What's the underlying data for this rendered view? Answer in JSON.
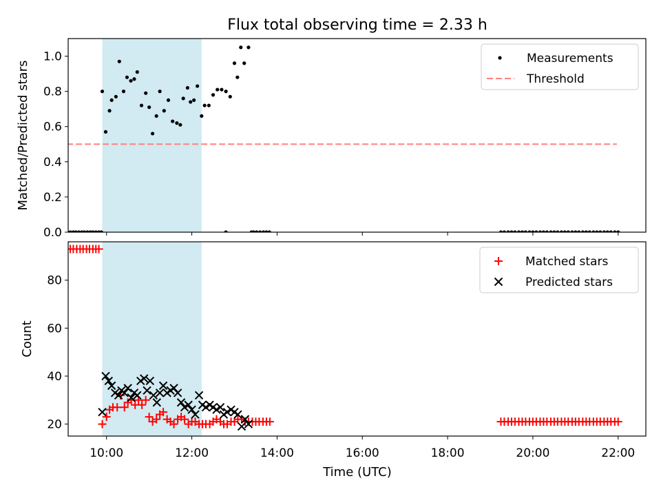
{
  "chart_data": {
    "title": "Flux total observing time = 2.33 h",
    "xlabel": "Time (UTC)",
    "xlim": [
      9.1,
      22.65
    ],
    "x_tick_labels": [
      "10:00",
      "12:00",
      "14:00",
      "16:00",
      "18:00",
      "20:00",
      "22:00"
    ],
    "x_ticks": [
      10,
      12,
      14,
      16,
      18,
      20,
      22
    ],
    "shaded_region": {
      "x": [
        9.9,
        12.23
      ],
      "color": "#add8e6"
    },
    "colors": {
      "measurements": "#000000",
      "threshold": "#ff8080",
      "matched": "#ff0000",
      "predicted": "#000000"
    },
    "panels": [
      {
        "type": "scatter",
        "ylabel": "Matched/Predicted stars",
        "ylim": [
          0,
          1.1
        ],
        "y_tick_labels": [
          "0.0",
          "0.2",
          "0.4",
          "0.6",
          "0.8",
          "1.0"
        ],
        "y_ticks": [
          0,
          0.2,
          0.4,
          0.6,
          0.8,
          1.0
        ],
        "legend": {
          "location": "upper right",
          "entries": [
            "Measurements",
            "Threshold"
          ]
        },
        "threshold": {
          "name": "Threshold",
          "value": 0.5,
          "x": [
            9.07,
            21.97
          ]
        },
        "series": [
          {
            "name": "Measurements",
            "x": [
              9.08,
              9.15,
              9.22,
              9.28,
              9.35,
              9.42,
              9.48,
              9.55,
              9.62,
              9.68,
              9.75,
              9.82,
              9.88,
              9.9,
              9.98,
              10.07,
              10.12,
              10.22,
              10.3,
              10.4,
              10.48,
              10.57,
              10.65,
              10.72,
              10.82,
              10.92,
              11.0,
              11.08,
              11.17,
              11.25,
              11.35,
              11.45,
              11.55,
              11.65,
              11.73,
              11.8,
              11.9,
              11.97,
              12.05,
              12.13,
              12.23,
              12.3,
              12.4,
              12.5,
              12.6,
              12.7,
              12.8,
              12.9,
              13.0,
              13.07,
              13.15,
              13.23,
              13.33,
              12.8,
              13.4,
              13.45,
              13.52,
              13.6,
              13.68,
              13.75,
              13.82,
              19.25,
              19.33,
              19.42,
              19.5,
              19.58,
              19.67,
              19.75,
              19.83,
              19.92,
              20.0,
              20.08,
              20.17,
              20.25,
              20.33,
              20.42,
              20.5,
              20.58,
              20.67,
              20.75,
              20.83,
              20.92,
              21.0,
              21.08,
              21.17,
              21.25,
              21.33,
              21.42,
              21.5,
              21.58,
              21.67,
              21.75,
              21.83,
              21.92,
              22.0
            ],
            "y": [
              0,
              0,
              0,
              0,
              0,
              0,
              0,
              0,
              0,
              0,
              0,
              0,
              0,
              0.8,
              0.57,
              0.69,
              0.75,
              0.77,
              0.97,
              0.8,
              0.88,
              0.86,
              0.87,
              0.91,
              0.72,
              0.79,
              0.71,
              0.56,
              0.66,
              0.8,
              0.69,
              0.75,
              0.63,
              0.62,
              0.61,
              0.76,
              0.82,
              0.74,
              0.75,
              0.83,
              0.66,
              0.72,
              0.72,
              0.78,
              0.81,
              0.81,
              0.8,
              0.77,
              0.96,
              0.88,
              1.05,
              0.96,
              1.05,
              0,
              0,
              0,
              0,
              0,
              0,
              0,
              0,
              0,
              0,
              0,
              0,
              0,
              0,
              0,
              0,
              0,
              0,
              0,
              0,
              0,
              0,
              0,
              0,
              0,
              0,
              0,
              0,
              0,
              0,
              0,
              0,
              0,
              0,
              0,
              0,
              0,
              0,
              0,
              0,
              0,
              0
            ]
          }
        ]
      },
      {
        "type": "scatter",
        "ylabel": "Count",
        "ylim": [
          15,
          96
        ],
        "y_tick_labels": [
          "20",
          "40",
          "60",
          "80"
        ],
        "y_ticks": [
          20,
          40,
          60,
          80
        ],
        "legend": {
          "location": "upper right",
          "entries": [
            "Matched stars",
            "Predicted stars"
          ]
        },
        "series": [
          {
            "name": "Matched stars",
            "marker": "+",
            "x": [
              9.0,
              9.08,
              9.15,
              9.22,
              9.3,
              9.38,
              9.45,
              9.53,
              9.6,
              9.68,
              9.75,
              9.82,
              9.9,
              10.0,
              10.07,
              10.15,
              10.25,
              10.33,
              10.42,
              10.5,
              10.58,
              10.67,
              10.75,
              10.83,
              10.92,
              11.0,
              11.08,
              11.17,
              11.25,
              11.33,
              11.42,
              11.5,
              11.58,
              11.67,
              11.75,
              11.83,
              11.92,
              12.0,
              12.08,
              12.17,
              12.25,
              12.33,
              12.42,
              12.5,
              12.58,
              12.67,
              12.75,
              12.83,
              12.92,
              13.0,
              13.08,
              13.17,
              13.25,
              13.33,
              13.42,
              13.5,
              13.58,
              13.67,
              13.75,
              13.83,
              19.25,
              19.33,
              19.42,
              19.5,
              19.58,
              19.67,
              19.75,
              19.83,
              19.92,
              20.0,
              20.08,
              20.17,
              20.25,
              20.33,
              20.42,
              20.5,
              20.58,
              20.67,
              20.75,
              20.83,
              20.92,
              21.0,
              21.08,
              21.17,
              21.25,
              21.33,
              21.42,
              21.5,
              21.58,
              21.67,
              21.75,
              21.83,
              21.92,
              22.0
            ],
            "y": [
              93,
              93,
              93,
              93,
              93,
              93,
              93,
              93,
              93,
              93,
              93,
              93,
              20,
              23,
              26,
              27,
              27,
              32,
              27,
              29,
              30,
              28,
              30,
              28,
              30,
              23,
              21,
              22,
              24,
              25,
              22,
              21,
              20,
              22,
              23,
              22,
              20,
              21,
              21,
              20,
              20,
              20,
              20,
              21,
              22,
              21,
              20,
              20,
              21,
              21,
              22,
              22,
              21,
              21,
              21,
              21,
              21,
              21,
              21,
              21,
              21,
              21,
              21,
              21,
              21,
              21,
              21,
              21,
              21,
              21,
              21,
              21,
              21,
              21,
              21,
              21,
              21,
              21,
              21,
              21,
              21,
              21,
              21,
              21,
              21,
              21,
              21,
              21,
              21,
              21,
              21,
              21,
              21,
              21
            ]
          },
          {
            "name": "Predicted stars",
            "marker": "x",
            "x": [
              9.9,
              9.98,
              10.05,
              10.12,
              10.2,
              10.28,
              10.35,
              10.42,
              10.5,
              10.58,
              10.65,
              10.72,
              10.8,
              10.88,
              10.95,
              11.02,
              11.1,
              11.18,
              11.25,
              11.33,
              11.42,
              11.5,
              11.58,
              11.67,
              11.75,
              11.83,
              11.92,
              12.0,
              12.08,
              12.17,
              12.25,
              12.33,
              12.42,
              12.5,
              12.58,
              12.67,
              12.75,
              12.83,
              12.92,
              13.0,
              13.08,
              13.17,
              13.25,
              13.33
            ],
            "y": [
              25,
              40,
              38,
              36,
              33,
              32,
              34,
              33,
              35,
              31,
              33,
              32,
              38,
              39,
              34,
              38,
              32,
              29,
              33,
              36,
              33,
              34,
              35,
              33,
              29,
              27,
              28,
              26,
              24,
              32,
              28,
              27,
              28,
              27,
              26,
              27,
              24,
              25,
              26,
              25,
              24,
              19,
              22,
              20
            ]
          }
        ]
      }
    ]
  }
}
